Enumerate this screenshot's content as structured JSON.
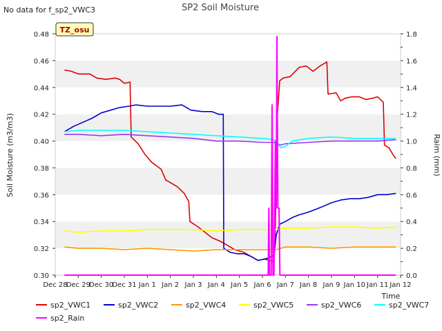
{
  "chart_data": {
    "type": "line",
    "title": "SP2 Soil Moisture",
    "note": "No data for f_sp2_VWC3",
    "badge": "TZ_osu",
    "xlabel": "Time",
    "ylabel": "Soil Moisture (m3/m3)",
    "y2label": "Raim (mm)",
    "xlim": [
      0,
      15
    ],
    "ylim": [
      0.3,
      0.48
    ],
    "y2lim": [
      0.0,
      1.8
    ],
    "x_ticks": [
      {
        "x": 0,
        "label": "Dec 28"
      },
      {
        "x": 1,
        "label": "Dec 29"
      },
      {
        "x": 2,
        "label": "Dec 30"
      },
      {
        "x": 3,
        "label": "Dec 31"
      },
      {
        "x": 4,
        "label": "Jan 1"
      },
      {
        "x": 5,
        "label": "Jan 2"
      },
      {
        "x": 6,
        "label": "Jan 3"
      },
      {
        "x": 7,
        "label": "Jan 4"
      },
      {
        "x": 8,
        "label": "Jan 5"
      },
      {
        "x": 9,
        "label": "Jan 6"
      },
      {
        "x": 10,
        "label": "Jan 7"
      },
      {
        "x": 11,
        "label": "Jan 8"
      },
      {
        "x": 12,
        "label": "Jan 9"
      },
      {
        "x": 13,
        "label": "Jan 10"
      },
      {
        "x": 14,
        "label": "Jan 11"
      },
      {
        "x": 15,
        "label": "Jan 12"
      }
    ],
    "y_ticks": [
      "0.30",
      "0.32",
      "0.34",
      "0.36",
      "0.38",
      "0.40",
      "0.42",
      "0.44",
      "0.46",
      "0.48"
    ],
    "y2_ticks": [
      "0.0",
      "0.2",
      "0.4",
      "0.6",
      "0.8",
      "1.0",
      "1.2",
      "1.4",
      "1.6",
      "1.8"
    ],
    "grid": "horizontal bands",
    "legend_position": "bottom",
    "series": [
      {
        "name": "sp2_VWC1",
        "color": "#dd0000",
        "axis": "left",
        "points": [
          [
            0.4,
            0.453
          ],
          [
            0.7,
            0.452
          ],
          [
            1.0,
            0.45
          ],
          [
            1.5,
            0.45
          ],
          [
            1.8,
            0.447
          ],
          [
            2.2,
            0.446
          ],
          [
            2.6,
            0.447
          ],
          [
            2.8,
            0.446
          ],
          [
            3.0,
            0.443
          ],
          [
            3.25,
            0.444
          ],
          [
            3.3,
            0.403
          ],
          [
            3.6,
            0.398
          ],
          [
            3.9,
            0.39
          ],
          [
            4.2,
            0.384
          ],
          [
            4.6,
            0.379
          ],
          [
            4.8,
            0.371
          ],
          [
            5.3,
            0.366
          ],
          [
            5.6,
            0.361
          ],
          [
            5.8,
            0.355
          ],
          [
            5.85,
            0.34
          ],
          [
            6.2,
            0.336
          ],
          [
            6.5,
            0.332
          ],
          [
            6.8,
            0.328
          ],
          [
            7.2,
            0.325
          ],
          [
            7.5,
            0.322
          ],
          [
            7.8,
            0.319
          ],
          [
            8.2,
            0.317
          ],
          [
            8.5,
            0.314
          ],
          [
            8.8,
            0.311
          ],
          [
            9.1,
            0.312
          ],
          [
            9.3,
            0.311
          ],
          [
            9.5,
            0.31
          ],
          [
            9.55,
            0.325
          ],
          [
            9.6,
            0.38
          ],
          [
            9.65,
            0.42
          ],
          [
            9.75,
            0.445
          ],
          [
            9.9,
            0.447
          ],
          [
            10.2,
            0.448
          ],
          [
            10.6,
            0.455
          ],
          [
            10.9,
            0.456
          ],
          [
            11.2,
            0.452
          ],
          [
            11.5,
            0.456
          ],
          [
            11.8,
            0.459
          ],
          [
            11.85,
            0.435
          ],
          [
            12.2,
            0.436
          ],
          [
            12.4,
            0.43
          ],
          [
            12.6,
            0.432
          ],
          [
            12.9,
            0.433
          ],
          [
            13.2,
            0.433
          ],
          [
            13.5,
            0.431
          ],
          [
            13.8,
            0.432
          ],
          [
            14.0,
            0.433
          ],
          [
            14.25,
            0.429
          ],
          [
            14.3,
            0.397
          ],
          [
            14.5,
            0.395
          ],
          [
            14.7,
            0.389
          ],
          [
            14.8,
            0.387
          ]
        ]
      },
      {
        "name": "sp2_VWC2",
        "color": "#0000cc",
        "axis": "left",
        "points": [
          [
            0.4,
            0.407
          ],
          [
            0.8,
            0.411
          ],
          [
            1.2,
            0.414
          ],
          [
            1.6,
            0.417
          ],
          [
            2.0,
            0.421
          ],
          [
            2.4,
            0.423
          ],
          [
            2.8,
            0.425
          ],
          [
            3.2,
            0.426
          ],
          [
            3.5,
            0.427
          ],
          [
            4.0,
            0.426
          ],
          [
            4.5,
            0.426
          ],
          [
            5.0,
            0.426
          ],
          [
            5.5,
            0.427
          ],
          [
            5.9,
            0.423
          ],
          [
            6.4,
            0.422
          ],
          [
            6.8,
            0.422
          ],
          [
            7.1,
            0.42
          ],
          [
            7.3,
            0.42
          ],
          [
            7.32,
            0.32
          ],
          [
            7.6,
            0.317
          ],
          [
            7.9,
            0.316
          ],
          [
            8.2,
            0.316
          ],
          [
            8.5,
            0.314
          ],
          [
            8.8,
            0.311
          ],
          [
            9.1,
            0.312
          ],
          [
            9.3,
            0.313
          ],
          [
            9.5,
            0.315
          ],
          [
            9.6,
            0.33
          ],
          [
            9.75,
            0.338
          ],
          [
            10.0,
            0.34
          ],
          [
            10.3,
            0.343
          ],
          [
            10.6,
            0.345
          ],
          [
            11.0,
            0.347
          ],
          [
            11.3,
            0.349
          ],
          [
            11.6,
            0.351
          ],
          [
            12.0,
            0.354
          ],
          [
            12.4,
            0.356
          ],
          [
            12.8,
            0.357
          ],
          [
            13.2,
            0.357
          ],
          [
            13.6,
            0.358
          ],
          [
            14.0,
            0.36
          ],
          [
            14.4,
            0.36
          ],
          [
            14.8,
            0.361
          ]
        ]
      },
      {
        "name": "sp2_VWC4",
        "color": "#ff9900",
        "axis": "left",
        "points": [
          [
            0.4,
            0.321
          ],
          [
            1.0,
            0.32
          ],
          [
            2.0,
            0.32
          ],
          [
            3.0,
            0.319
          ],
          [
            4.0,
            0.32
          ],
          [
            5.0,
            0.319
          ],
          [
            6.0,
            0.318
          ],
          [
            7.0,
            0.319
          ],
          [
            8.0,
            0.319
          ],
          [
            9.0,
            0.319
          ],
          [
            9.6,
            0.319
          ],
          [
            10.0,
            0.321
          ],
          [
            11.0,
            0.321
          ],
          [
            12.0,
            0.32
          ],
          [
            13.0,
            0.321
          ],
          [
            14.0,
            0.321
          ],
          [
            14.8,
            0.321
          ]
        ]
      },
      {
        "name": "sp2_VWC5",
        "color": "#ffff00",
        "axis": "left",
        "points": [
          [
            0.4,
            0.333
          ],
          [
            1.0,
            0.332
          ],
          [
            2.0,
            0.333
          ],
          [
            3.0,
            0.333
          ],
          [
            4.0,
            0.334
          ],
          [
            5.0,
            0.334
          ],
          [
            6.0,
            0.334
          ],
          [
            7.0,
            0.333
          ],
          [
            8.0,
            0.334
          ],
          [
            9.0,
            0.334
          ],
          [
            9.6,
            0.334
          ],
          [
            10.0,
            0.335
          ],
          [
            11.0,
            0.335
          ],
          [
            12.0,
            0.336
          ],
          [
            13.0,
            0.336
          ],
          [
            14.0,
            0.335
          ],
          [
            14.8,
            0.336
          ]
        ]
      },
      {
        "name": "sp2_VWC6",
        "color": "#9933ff",
        "axis": "left",
        "points": [
          [
            0.4,
            0.405
          ],
          [
            1.0,
            0.405
          ],
          [
            2.0,
            0.404
          ],
          [
            3.0,
            0.405
          ],
          [
            4.0,
            0.404
          ],
          [
            5.0,
            0.403
          ],
          [
            6.0,
            0.402
          ],
          [
            7.0,
            0.4
          ],
          [
            8.0,
            0.4
          ],
          [
            9.0,
            0.399
          ],
          [
            9.5,
            0.399
          ],
          [
            9.8,
            0.397
          ],
          [
            10.0,
            0.398
          ],
          [
            11.0,
            0.399
          ],
          [
            12.0,
            0.4
          ],
          [
            13.0,
            0.4
          ],
          [
            14.0,
            0.4
          ],
          [
            14.8,
            0.401
          ]
        ]
      },
      {
        "name": "sp2_VWC7",
        "color": "#00ffff",
        "axis": "left",
        "points": [
          [
            0.4,
            0.407
          ],
          [
            1.0,
            0.408
          ],
          [
            2.0,
            0.408
          ],
          [
            3.0,
            0.408
          ],
          [
            4.0,
            0.407
          ],
          [
            5.0,
            0.406
          ],
          [
            6.0,
            0.405
          ],
          [
            7.0,
            0.404
          ],
          [
            8.0,
            0.403
          ],
          [
            9.0,
            0.402
          ],
          [
            9.5,
            0.401
          ],
          [
            9.8,
            0.395
          ],
          [
            10.0,
            0.396
          ],
          [
            10.3,
            0.4
          ],
          [
            11.0,
            0.402
          ],
          [
            12.0,
            0.403
          ],
          [
            13.0,
            0.402
          ],
          [
            14.0,
            0.402
          ],
          [
            14.8,
            0.402
          ]
        ]
      },
      {
        "name": "sp2_Rain",
        "color": "#ff00ff",
        "axis": "right",
        "points": [
          [
            0.4,
            0.0
          ],
          [
            9.25,
            0.0
          ],
          [
            9.28,
            0.5
          ],
          [
            9.31,
            0.0
          ],
          [
            9.38,
            0.0
          ],
          [
            9.42,
            1.27
          ],
          [
            9.46,
            0.0
          ],
          [
            9.5,
            0.0
          ],
          [
            9.53,
            0.5
          ],
          [
            9.56,
            1.0
          ],
          [
            9.6,
            0.5
          ],
          [
            9.63,
            1.78
          ],
          [
            9.67,
            0.5
          ],
          [
            9.72,
            0.5
          ],
          [
            9.76,
            0.0
          ],
          [
            14.8,
            0.0
          ]
        ]
      }
    ]
  }
}
